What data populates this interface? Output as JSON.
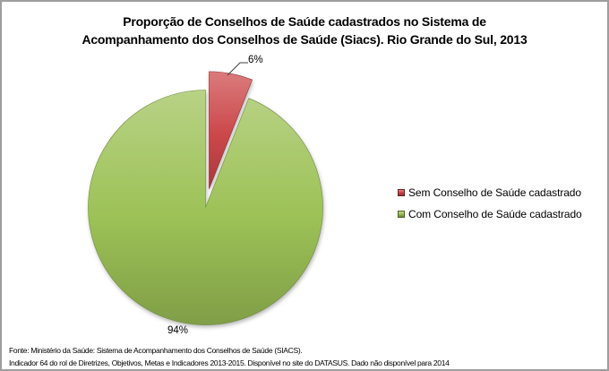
{
  "title": {
    "line1": "Proporção de Conselhos de Saúde cadastrados no Sistema de",
    "line2": "Acompanhamento dos Conselhos de Saúde (Siacs). Rio Grande do Sul, 2013"
  },
  "chart_data": {
    "type": "pie",
    "title": "Proporção de Conselhos de Saúde cadastrados no Sistema de Acompanhamento dos Conselhos de Saúde (Siacs). Rio Grande do Sul, 2013",
    "unit": "%",
    "start_angle_deg": 0,
    "direction": "clockwise",
    "legend_position": "right",
    "slices": [
      {
        "label": "Sem Conselho de Saúde cadastrado",
        "value": 6,
        "percent_label": "6%",
        "color": "#cb4749",
        "exploded": true
      },
      {
        "label": "Com Conselho de Saúde cadastrado",
        "value": 94,
        "percent_label": "94%",
        "color": "#9cc156",
        "exploded": false
      }
    ]
  },
  "footer": {
    "line1": "Fonte: Ministério da Saúde:  Sistema de Acompanhamento dos Conselhos de Saúde (SIACS).",
    "line2": "Indicador 64 do rol de Diretrizes, Objetivos, Metas e Indicadores 2013-2015. Disponível no site do DATASUS. Dado não disponível para 2014"
  }
}
